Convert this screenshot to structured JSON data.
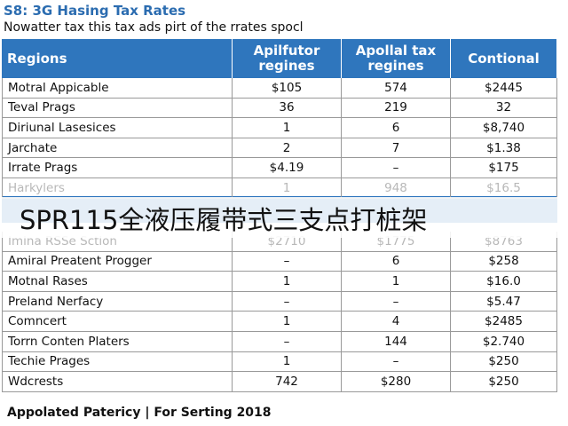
{
  "header": {
    "title": "S8: 3G Hasing Tax Rates",
    "subtitle": "Nowatter tax this tax ads pirt of the rrates spocl"
  },
  "table": {
    "columns": [
      "Regions",
      "Apilfutor regines",
      "Apollal tax regines",
      "Contional"
    ],
    "rows": [
      [
        "Motral Appicable",
        "$105",
        "574",
        "$2445"
      ],
      [
        "Teval Prags",
        "36",
        "219",
        "32"
      ],
      [
        "Diriunal Lasesices",
        "1",
        "6",
        "$8,740"
      ],
      [
        "Jarchate",
        "2",
        "7",
        "$1.38"
      ],
      [
        "Irrate Prags",
        "$4.19",
        "–",
        "$175"
      ],
      [
        "Harkylers",
        "1",
        "948",
        "$16.5"
      ],
      [
        "Imina RSSe Sction",
        "$2710",
        "$1775",
        "$8763"
      ],
      [
        "Amiral Preatent Progger",
        "–",
        "6",
        "$258"
      ],
      [
        "Motnal Rases",
        "1",
        "1",
        "$16.0"
      ],
      [
        "Preland Nerfacy",
        "–",
        "–",
        "$5.47"
      ],
      [
        "Comncert",
        "1",
        "4",
        "$2485"
      ],
      [
        "Torrn Conten Platers",
        "–",
        "144",
        "$2.740"
      ],
      [
        "Techie Prages",
        "1",
        "–",
        "$250"
      ],
      [
        "Wdcrests",
        "742",
        "$280",
        "$250"
      ]
    ]
  },
  "overlay": "SPR115全液压履带式三支点打桩架",
  "footer": "Appolated Patericy | For Serting 2018"
}
